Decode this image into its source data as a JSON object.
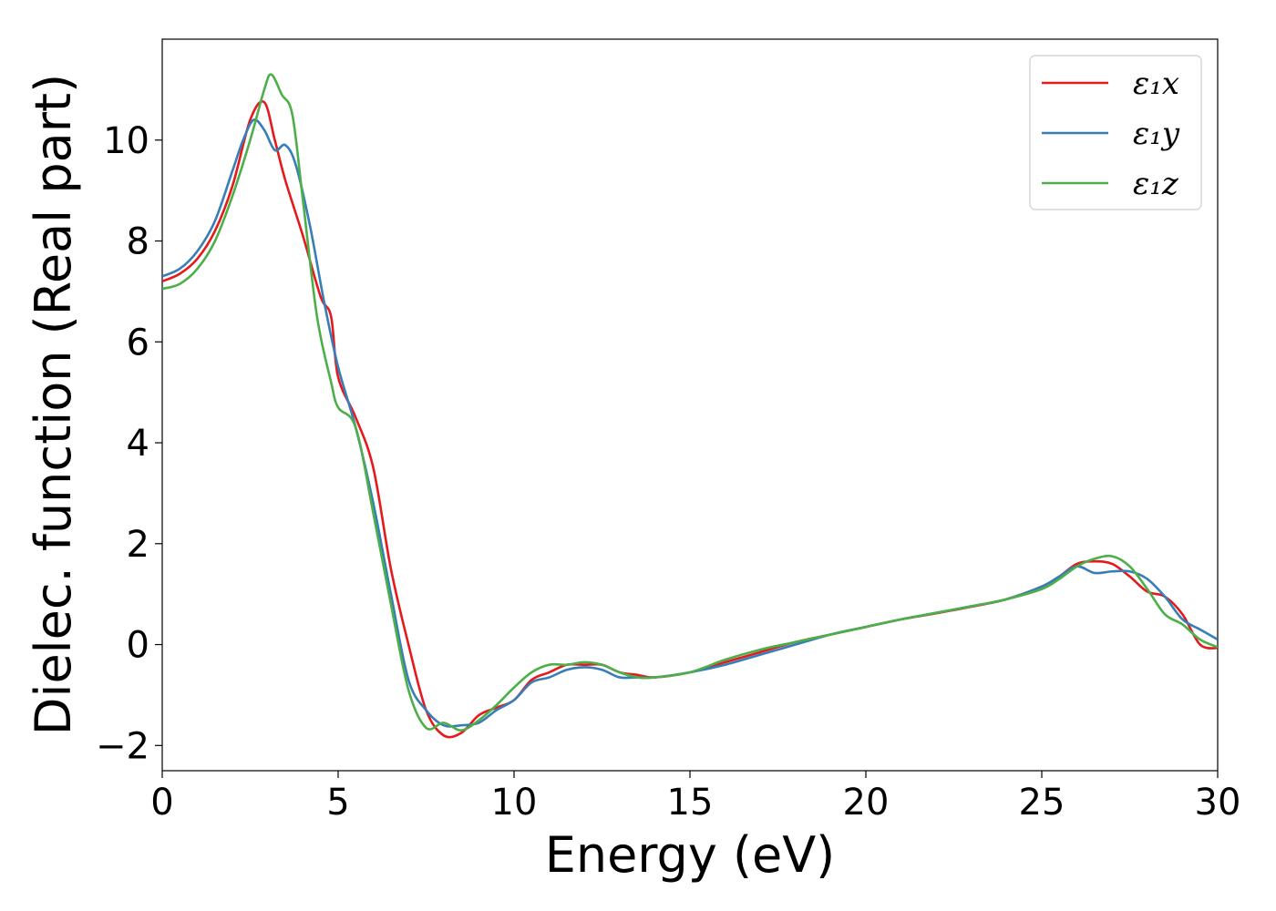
{
  "chart_data": {
    "type": "line",
    "xlabel": "Energy (eV)",
    "ylabel": "Dielec. function (Real part)",
    "xlim": [
      0,
      30
    ],
    "ylim": [
      -2.5,
      12
    ],
    "xticks": [
      0,
      5,
      10,
      15,
      20,
      25,
      30
    ],
    "xtick_labels": [
      "0",
      "5",
      "10",
      "15",
      "20",
      "25",
      "30"
    ],
    "yticks": [
      -2,
      0,
      2,
      4,
      6,
      8,
      10
    ],
    "ytick_labels": [
      "−2",
      "0",
      "2",
      "4",
      "6",
      "8",
      "10"
    ],
    "grid": false,
    "legend_position": "top-right",
    "series": [
      {
        "name": "ε₁x",
        "color": "#e41a1c",
        "x": [
          0,
          0.5,
          1,
          1.5,
          2,
          2.5,
          2.9,
          3.2,
          3.5,
          4,
          4.5,
          4.8,
          5,
          5.5,
          6,
          6.5,
          7,
          7.5,
          8,
          8.5,
          9,
          9.5,
          10,
          10.5,
          11,
          11.5,
          12,
          12.5,
          13,
          13.5,
          14,
          15,
          16,
          17,
          18,
          19,
          20,
          21,
          22,
          23,
          24,
          25,
          25.5,
          26,
          26.5,
          27,
          27.5,
          28,
          28.5,
          29,
          29.5,
          30
        ],
        "y": [
          7.2,
          7.35,
          7.65,
          8.2,
          9.1,
          10.4,
          10.75,
          10.0,
          9.2,
          8.1,
          6.9,
          6.5,
          5.3,
          4.5,
          3.5,
          1.5,
          0.0,
          -1.3,
          -1.8,
          -1.75,
          -1.4,
          -1.25,
          -1.1,
          -0.7,
          -0.55,
          -0.4,
          -0.4,
          -0.4,
          -0.55,
          -0.6,
          -0.65,
          -0.55,
          -0.35,
          -0.15,
          0.05,
          0.2,
          0.35,
          0.5,
          0.62,
          0.75,
          0.9,
          1.15,
          1.35,
          1.6,
          1.65,
          1.6,
          1.35,
          1.05,
          0.95,
          0.6,
          0.0,
          -0.07
        ]
      },
      {
        "name": "ε₁y",
        "color": "#377eb8",
        "x": [
          0,
          0.5,
          1,
          1.5,
          2,
          2.3,
          2.6,
          2.9,
          3.2,
          3.5,
          3.8,
          4.2,
          4.6,
          5,
          5.5,
          6,
          6.5,
          7,
          7.5,
          8,
          8.5,
          9,
          9.5,
          10,
          10.5,
          11,
          11.5,
          12,
          12.5,
          13,
          13.5,
          14,
          15,
          16,
          17,
          18,
          19,
          20,
          21,
          22,
          23,
          24,
          25,
          25.5,
          26,
          26.5,
          27,
          27.5,
          28,
          28.5,
          29,
          29.5,
          30
        ],
        "y": [
          7.3,
          7.45,
          7.8,
          8.4,
          9.4,
          10.0,
          10.4,
          10.2,
          9.8,
          9.9,
          9.5,
          8.3,
          6.8,
          5.5,
          4.3,
          2.8,
          1.0,
          -0.7,
          -1.3,
          -1.6,
          -1.6,
          -1.55,
          -1.3,
          -1.1,
          -0.75,
          -0.65,
          -0.5,
          -0.45,
          -0.5,
          -0.65,
          -0.65,
          -0.65,
          -0.55,
          -0.4,
          -0.2,
          0.0,
          0.2,
          0.35,
          0.5,
          0.63,
          0.76,
          0.9,
          1.15,
          1.35,
          1.55,
          1.42,
          1.45,
          1.45,
          1.3,
          0.95,
          0.5,
          0.3,
          0.1
        ]
      },
      {
        "name": "ε₁z",
        "color": "#4daf4a",
        "x": [
          0,
          0.5,
          1,
          1.5,
          2,
          2.5,
          2.9,
          3.1,
          3.4,
          3.7,
          4.0,
          4.4,
          4.8,
          5,
          5.5,
          6,
          6.5,
          7,
          7.5,
          8,
          8.5,
          9,
          9.5,
          10,
          10.5,
          11,
          11.5,
          12,
          12.5,
          13,
          13.5,
          14,
          15,
          16,
          17,
          18,
          19,
          20,
          21,
          22,
          23,
          24,
          25,
          25.5,
          26,
          26.5,
          27,
          27.5,
          28,
          28.5,
          29,
          29.5,
          30
        ],
        "y": [
          7.05,
          7.15,
          7.45,
          8.0,
          8.9,
          10.0,
          11.0,
          11.3,
          10.9,
          10.5,
          8.8,
          6.5,
          5.2,
          4.7,
          4.3,
          2.6,
          0.8,
          -0.9,
          -1.65,
          -1.55,
          -1.7,
          -1.5,
          -1.2,
          -0.85,
          -0.55,
          -0.4,
          -0.4,
          -0.35,
          -0.4,
          -0.55,
          -0.65,
          -0.65,
          -0.55,
          -0.3,
          -0.1,
          0.05,
          0.2,
          0.35,
          0.5,
          0.63,
          0.76,
          0.9,
          1.1,
          1.3,
          1.55,
          1.7,
          1.75,
          1.55,
          1.1,
          0.6,
          0.4,
          0.1,
          -0.05
        ]
      }
    ]
  }
}
